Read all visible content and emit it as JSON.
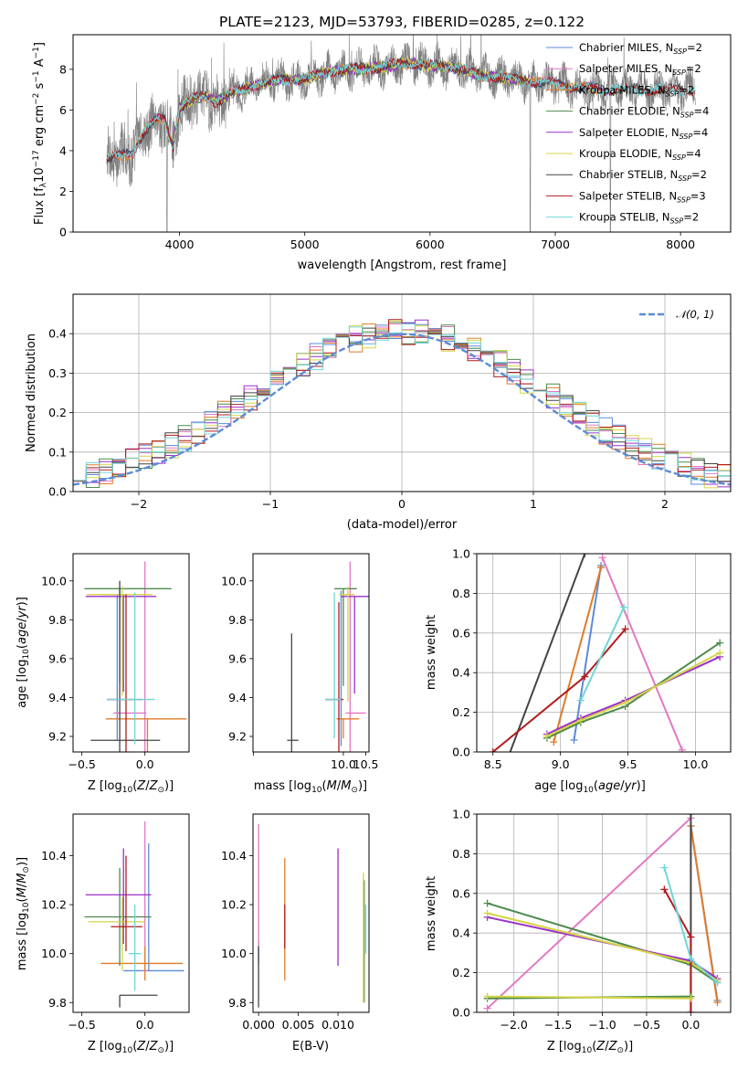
{
  "chart_data": [
    {
      "id": "spectrum",
      "type": "line",
      "title": "PLATE=2123, MJD=53793, FIBERID=0285, z=0.122",
      "xlabel": "wavelength [Angstrom, rest frame]",
      "ylabel": "Flux [f_λ 10^-17 erg cm^-2 s^-1 A^-1]",
      "xlim": [
        3150,
        8400
      ],
      "ylim": [
        0,
        9.7
      ],
      "xticks": [
        4000,
        5000,
        6000,
        7000,
        8000
      ],
      "yticks": [
        0,
        2,
        4,
        6,
        8
      ],
      "grid": false,
      "legend_position": "top-right",
      "data_color": "#808080",
      "continuum_knots": [
        [
          3420,
          3.6
        ],
        [
          3500,
          3.7
        ],
        [
          3620,
          3.9
        ],
        [
          3700,
          4.8
        ],
        [
          3800,
          5.5
        ],
        [
          3880,
          5.5
        ],
        [
          3950,
          4.2
        ],
        [
          4000,
          6.1
        ],
        [
          4100,
          6.5
        ],
        [
          4200,
          6.7
        ],
        [
          4300,
          6.4
        ],
        [
          4400,
          6.8
        ],
        [
          4600,
          7.2
        ],
        [
          4800,
          7.5
        ],
        [
          5000,
          7.5
        ],
        [
          5200,
          7.9
        ],
        [
          5400,
          8.0
        ],
        [
          5600,
          8.1
        ],
        [
          5800,
          8.3
        ],
        [
          6000,
          8.2
        ],
        [
          6200,
          8.1
        ],
        [
          6400,
          7.7
        ],
        [
          6600,
          7.6
        ],
        [
          6800,
          7.4
        ],
        [
          7000,
          7.3
        ],
        [
          7200,
          7.1
        ],
        [
          7400,
          7.0
        ],
        [
          7600,
          7.0
        ],
        [
          7800,
          7.0
        ],
        [
          8000,
          7.0
        ],
        [
          8120,
          7.0
        ]
      ],
      "series": [
        {
          "name": "Chabrier MILES, N_SSP=2",
          "color": "#5b8bd6",
          "x_start": 3420,
          "x_end": 7450
        },
        {
          "name": "Salpeter MILES, N_SSP=2",
          "color": "#e377c2",
          "x_start": 3420,
          "x_end": 7450
        },
        {
          "name": "Kroupa MILES, N_SSP=2",
          "color": "#e07b2a",
          "x_start": 3420,
          "x_end": 7450
        },
        {
          "name": "Chabrier ELODIE, N_SSP=4",
          "color": "#4c8a4c",
          "x_start": 3900,
          "x_end": 6800
        },
        {
          "name": "Salpeter ELODIE, N_SSP=4",
          "color": "#9b30c8",
          "x_start": 3900,
          "x_end": 6800
        },
        {
          "name": "Kroupa ELODIE, N_SSP=4",
          "color": "#d4d444",
          "x_start": 3900,
          "x_end": 6800
        },
        {
          "name": "Chabrier STELIB, N_SSP=2",
          "color": "#444444",
          "x_start": 3420,
          "x_end": 8120
        },
        {
          "name": "Salpeter STELIB, N_SSP=3",
          "color": "#b01c1c",
          "x_start": 3420,
          "x_end": 8120
        },
        {
          "name": "Kroupa STELIB, N_SSP=2",
          "color": "#6fd5d8",
          "x_start": 3420,
          "x_end": 8120
        }
      ]
    },
    {
      "id": "residuals",
      "type": "histogram",
      "xlabel": "(data-model)/error",
      "ylabel": "Normed distribution",
      "xlim": [
        -2.5,
        2.5
      ],
      "ylim": [
        0,
        0.5
      ],
      "xticks": [
        -2,
        -1,
        0,
        1,
        2
      ],
      "yticks": [
        0.0,
        0.1,
        0.2,
        0.3,
        0.4
      ],
      "grid": true,
      "legend_position": "top-right",
      "legend_label": "N(0,1)",
      "gaussian_color": "#5b8bd6",
      "bins": 50
    },
    {
      "id": "age_vs_Z",
      "type": "errorbar",
      "xlabel": "Z [log10(Z/Z⊙)]",
      "ylabel": "age [log10(age/yr)]",
      "xlim": [
        -0.57,
        0.35
      ],
      "ylim": [
        9.12,
        10.14
      ],
      "xticks": [
        -0.5,
        0.0
      ],
      "yticks": [
        9.2,
        9.4,
        9.6,
        9.8,
        10.0
      ],
      "points": [
        {
          "color": "#5b8bd6",
          "x": -0.22,
          "xerr": [
            0.13,
            0.05
          ],
          "y": 9.93,
          "yerr": [
            0.75,
            0.0
          ]
        },
        {
          "color": "#e377c2",
          "x": 0.0,
          "xerr": [
            0.25,
            0.01
          ],
          "y": 9.32,
          "yerr": [
            0.26,
            0.78
          ]
        },
        {
          "color": "#e07b2a",
          "x": 0.02,
          "xerr": [
            0.33,
            0.31
          ],
          "y": 9.29,
          "yerr": [
            0.19,
            0.0
          ]
        },
        {
          "color": "#4c8a4c",
          "x": -0.2,
          "xerr": [
            0.28,
            0.41
          ],
          "y": 9.96,
          "yerr": [
            0.48,
            0.0
          ]
        },
        {
          "color": "#9b30c8",
          "x": -0.17,
          "xerr": [
            0.3,
            0.26
          ],
          "y": 9.92,
          "yerr": [
            0.49,
            0.01
          ]
        },
        {
          "color": "#d4d444",
          "x": -0.18,
          "xerr": [
            0.28,
            0.24
          ],
          "y": 9.93,
          "yerr": [
            0.52,
            0.04
          ]
        },
        {
          "color": "#444444",
          "x": -0.2,
          "xerr": [
            0.23,
            0.32
          ],
          "y": 9.18,
          "yerr": [
            0.07,
            0.82
          ]
        },
        {
          "color": "#b01c1c",
          "x": -0.15,
          "xerr": [
            0.15,
            0.13
          ],
          "y": 9.39,
          "yerr": [
            0.47,
            0.54
          ]
        },
        {
          "color": "#6fd5d8",
          "x": -0.08,
          "xerr": [
            0.22,
            0.16
          ],
          "y": 9.39,
          "yerr": [
            0.23,
            0.55
          ]
        }
      ]
    },
    {
      "id": "age_vs_mass",
      "type": "errorbar",
      "xlabel": "mass [log10(M/M⊙)]",
      "ylabel": "",
      "xlim": [
        7.99,
        10.57
      ],
      "ylim": [
        9.12,
        10.14
      ],
      "xticks": [
        8.0,
        10.0,
        10.5
      ],
      "xticklabels": [
        "",
        "10.0",
        "10.5"
      ],
      "yticks": [
        9.2,
        9.4,
        9.6,
        9.8,
        10.0
      ],
      "points": [
        {
          "color": "#5b8bd6",
          "x": 9.95,
          "xerr": [
            0.0,
            0.0
          ],
          "y": 9.25,
          "yerr": [
            0.1,
            0.7
          ]
        },
        {
          "color": "#e377c2",
          "x": 10.15,
          "xerr": [
            0.1,
            0.35
          ],
          "y": 9.32,
          "yerr": [
            0.2,
            0.78
          ]
        },
        {
          "color": "#e07b2a",
          "x": 10.0,
          "xerr": [
            0.15,
            0.35
          ],
          "y": 9.29,
          "yerr": [
            0.1,
            0.0
          ]
        },
        {
          "color": "#4c8a4c",
          "x": 10.0,
          "xerr": [
            0.2,
            0.3
          ],
          "y": 9.96,
          "yerr": [
            0.5,
            0.0
          ]
        },
        {
          "color": "#9b30c8",
          "x": 10.25,
          "xerr": [
            0.3,
            0.35
          ],
          "y": 9.92,
          "yerr": [
            0.5,
            0.0
          ]
        },
        {
          "color": "#d4d444",
          "x": 10.1,
          "xerr": [
            0.2,
            0.15
          ],
          "y": 9.93,
          "yerr": [
            0.55,
            0.04
          ]
        },
        {
          "color": "#444444",
          "x": 8.85,
          "xerr": [
            0.1,
            0.15
          ],
          "y": 9.18,
          "yerr": [
            0.07,
            0.55
          ]
        },
        {
          "color": "#b01c1c",
          "x": 9.9,
          "xerr": [
            0.3,
            0.1
          ],
          "y": 9.39,
          "yerr": [
            0.3,
            0.5
          ]
        },
        {
          "color": "#6fd5d8",
          "x": 9.8,
          "xerr": [
            0.2,
            0.15
          ],
          "y": 9.39,
          "yerr": [
            0.2,
            0.55
          ]
        }
      ]
    },
    {
      "id": "massweight_vs_age",
      "type": "line",
      "xlabel": "age [log10(age/yr)]",
      "ylabel": "mass weight",
      "xlim": [
        8.38,
        10.26
      ],
      "ylim": [
        0,
        1
      ],
      "xticks": [
        8.5,
        9.0,
        9.5,
        10.0
      ],
      "yticks": [
        0.0,
        0.2,
        0.4,
        0.6,
        0.8,
        1.0
      ],
      "grid": true,
      "series": [
        {
          "color": "#5b8bd6",
          "x": [
            9.1,
            9.3
          ],
          "y": [
            0.06,
            0.94
          ]
        },
        {
          "color": "#e377c2",
          "x": [
            9.31,
            9.9
          ],
          "y": [
            0.98,
            0.01
          ]
        },
        {
          "color": "#e07b2a",
          "x": [
            8.95,
            9.3
          ],
          "y": [
            0.05,
            0.93
          ]
        },
        {
          "color": "#4c8a4c",
          "x": [
            8.9,
            9.15,
            9.48,
            10.18
          ],
          "y": [
            0.07,
            0.15,
            0.23,
            0.55
          ]
        },
        {
          "color": "#9b30c8",
          "x": [
            8.9,
            9.15,
            9.48,
            10.18
          ],
          "y": [
            0.09,
            0.17,
            0.26,
            0.48
          ]
        },
        {
          "color": "#d4d444",
          "x": [
            8.9,
            9.15,
            9.48,
            10.18
          ],
          "y": [
            0.08,
            0.16,
            0.25,
            0.5
          ]
        },
        {
          "color": "#444444",
          "x": [
            8.6,
            9.18
          ],
          "y": [
            -0.05,
            1.0
          ]
        },
        {
          "color": "#b01c1c",
          "x": [
            8.5,
            9.18,
            9.48
          ],
          "y": [
            0.0,
            0.38,
            0.62
          ]
        },
        {
          "color": "#6fd5d8",
          "x": [
            9.15,
            9.47
          ],
          "y": [
            0.26,
            0.73
          ]
        }
      ]
    },
    {
      "id": "mass_vs_Z",
      "type": "errorbar",
      "xlabel": "Z [log10(Z/Z⊙)]",
      "ylabel": "mass [log10(M/M⊙)]",
      "xlim": [
        -0.57,
        0.35
      ],
      "ylim": [
        9.76,
        10.57
      ],
      "xticks": [
        -0.5,
        0.0
      ],
      "yticks": [
        9.8,
        10.0,
        10.2,
        10.4
      ],
      "points": [
        {
          "color": "#5b8bd6",
          "x": 0.03,
          "xerr": [
            0.2,
            0.28
          ],
          "y": 9.93,
          "yerr": [
            0.0,
            0.52
          ]
        },
        {
          "color": "#e377c2",
          "x": 0.0,
          "xerr": [
            0.02,
            0.02
          ],
          "y": 9.93,
          "yerr": [
            0.0,
            0.61
          ]
        },
        {
          "color": "#e07b2a",
          "x": 0.0,
          "xerr": [
            0.35,
            0.3
          ],
          "y": 9.96,
          "yerr": [
            0.07,
            0.07
          ]
        },
        {
          "color": "#4c8a4c",
          "x": -0.2,
          "xerr": [
            0.28,
            0.25
          ],
          "y": 10.15,
          "yerr": [
            0.2,
            0.2
          ]
        },
        {
          "color": "#9b30c8",
          "x": -0.17,
          "xerr": [
            0.3,
            0.22
          ],
          "y": 10.24,
          "yerr": [
            0.2,
            0.19
          ]
        },
        {
          "color": "#d4d444",
          "x": -0.18,
          "xerr": [
            0.27,
            0.18
          ],
          "y": 10.13,
          "yerr": [
            0.2,
            0.1
          ]
        },
        {
          "color": "#444444",
          "x": -0.2,
          "xerr": [
            0.0,
            0.3
          ],
          "y": 9.83,
          "yerr": [
            0.05,
            0.0
          ]
        },
        {
          "color": "#b01c1c",
          "x": -0.15,
          "xerr": [
            0.12,
            0.13
          ],
          "y": 10.11,
          "yerr": [
            0.1,
            0.29
          ]
        },
        {
          "color": "#6fd5d8",
          "x": -0.08,
          "xerr": [
            0.05,
            0.05
          ],
          "y": 10.0,
          "yerr": [
            0.15,
            0.2
          ]
        }
      ]
    },
    {
      "id": "mass_vs_ebv",
      "type": "errorbar",
      "xlabel": "E(B-V)",
      "ylabel": "",
      "xlim": [
        -0.0007,
        0.0139
      ],
      "ylim": [
        9.76,
        10.57
      ],
      "xticks": [
        0.0,
        0.005,
        0.01
      ],
      "xticklabels": [
        "0.000",
        "0.005",
        "0.010"
      ],
      "yticks": [
        9.8,
        10.0,
        10.2,
        10.4
      ],
      "points": [
        {
          "color": "#5b8bd6",
          "x": 0.0,
          "y": 10.0,
          "yerr": [
            0.05,
            0.05
          ]
        },
        {
          "color": "#e377c2",
          "x": 0.0,
          "y": 10.15,
          "yerr": [
            0.18,
            0.38
          ]
        },
        {
          "color": "#e07b2a",
          "x": 0.0033,
          "y": 10.14,
          "yerr": [
            0.25,
            0.25
          ]
        },
        {
          "color": "#4c8a4c",
          "x": 0.0133,
          "y": 10.1,
          "yerr": [
            0.3,
            0.2
          ]
        },
        {
          "color": "#9b30c8",
          "x": 0.01,
          "y": 10.18,
          "yerr": [
            0.23,
            0.25
          ]
        },
        {
          "color": "#d4d444",
          "x": 0.0132,
          "y": 10.05,
          "yerr": [
            0.25,
            0.28
          ]
        },
        {
          "color": "#444444",
          "x": 0.0,
          "y": 9.9,
          "yerr": [
            0.12,
            0.13
          ]
        },
        {
          "color": "#b01c1c",
          "x": 0.0033,
          "y": 10.1,
          "yerr": [
            0.08,
            0.1
          ]
        },
        {
          "color": "#6fd5d8",
          "x": 0.0135,
          "y": 10.1,
          "yerr": [
            0.1,
            0.1
          ]
        }
      ]
    },
    {
      "id": "massweight_vs_Z",
      "type": "line",
      "xlabel": "Z [log10(Z/Z⊙)]",
      "ylabel": "mass weight",
      "xlim": [
        -2.42,
        0.45
      ],
      "ylim": [
        0,
        1
      ],
      "xticks": [
        -2.0,
        -1.5,
        -1.0,
        -0.5,
        0.0
      ],
      "yticks": [
        0.0,
        0.2,
        0.4,
        0.6,
        0.8,
        1.0
      ],
      "grid": true,
      "series": [
        {
          "color": "#5b8bd6",
          "x": [
            0.0,
            0.3
          ],
          "y": [
            0.94,
            0.06
          ]
        },
        {
          "color": "#e377c2",
          "x": [
            -2.3,
            0.0
          ],
          "y": [
            0.02,
            0.98
          ]
        },
        {
          "color": "#e07b2a",
          "x": [
            0.0,
            0.3
          ],
          "y": [
            0.94,
            0.05
          ]
        },
        {
          "color": "#4c8a4c",
          "x": [
            -2.3,
            0.0,
            0.3
          ],
          "y": [
            0.55,
            0.24,
            0.15
          ]
        },
        {
          "color": "#9b30c8",
          "x": [
            -2.3,
            0.0,
            0.3
          ],
          "y": [
            0.48,
            0.26,
            0.17
          ]
        },
        {
          "color": "#d4d444",
          "x": [
            -2.3,
            0.0,
            0.3
          ],
          "y": [
            0.5,
            0.25,
            0.16
          ]
        },
        {
          "color": "#444444",
          "x": [
            0.0,
            0.0
          ],
          "y": [
            0.0,
            1.0
          ]
        },
        {
          "color": "#b01c1c",
          "x": [
            -0.3,
            0.0,
            0.0
          ],
          "y": [
            0.62,
            0.38,
            0.0
          ]
        },
        {
          "color": "#6fd5d8",
          "x": [
            -0.3,
            0.0,
            0.3
          ],
          "y": [
            0.73,
            0.27,
            0.15
          ]
        },
        {
          "color": "#4c8a4c",
          "x": [
            -2.3,
            0.0
          ],
          "y": [
            0.07,
            0.08
          ]
        },
        {
          "color": "#d4d444",
          "x": [
            -2.3,
            0.0
          ],
          "y": [
            0.08,
            0.07
          ]
        }
      ]
    }
  ]
}
